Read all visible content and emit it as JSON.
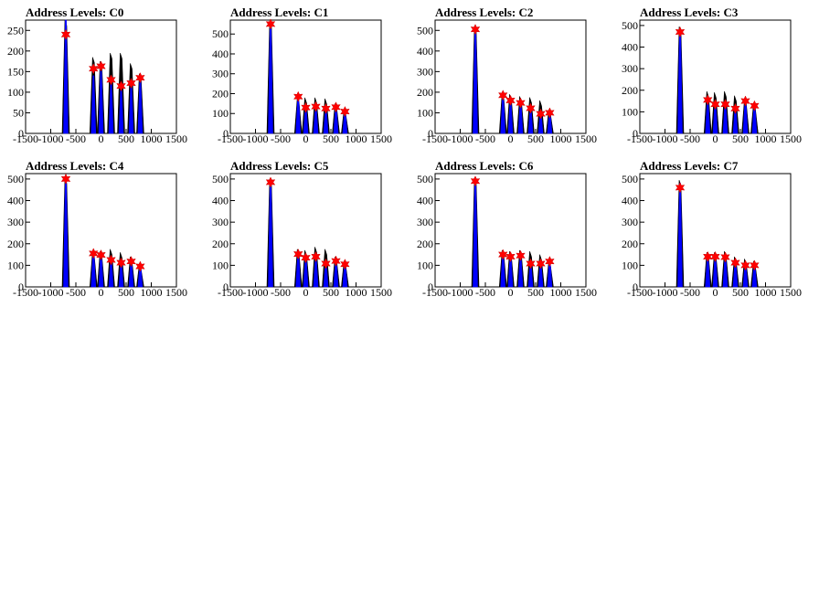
{
  "chart_data": [
    {
      "type": "histogram",
      "title": "Address Levels: C0",
      "xlim": [
        -1500,
        1500
      ],
      "ylim": [
        0,
        275
      ],
      "xticks": [
        -1500,
        -1000,
        -500,
        0,
        500,
        1000,
        1500
      ],
      "yticks": [
        0,
        50,
        100,
        150,
        200,
        250
      ],
      "colors": {
        "histogram": "#000000",
        "fit": "#0000ff",
        "marker": "#ff0000"
      },
      "histogram": [
        {
          "x": -700,
          "y": 275
        },
        {
          "x": -150,
          "y": 185
        },
        {
          "x": 0,
          "y": 175
        },
        {
          "x": 200,
          "y": 195
        },
        {
          "x": 400,
          "y": 195
        },
        {
          "x": 600,
          "y": 170
        },
        {
          "x": 780,
          "y": 145
        }
      ],
      "fit": [
        {
          "x": -700,
          "y": 275
        },
        {
          "x": -150,
          "y": 140
        },
        {
          "x": 0,
          "y": 155
        },
        {
          "x": 200,
          "y": 125
        },
        {
          "x": 400,
          "y": 110
        },
        {
          "x": 600,
          "y": 120
        },
        {
          "x": 780,
          "y": 130
        }
      ],
      "peaks": [
        {
          "x": -700,
          "y": 240
        },
        {
          "x": -150,
          "y": 157
        },
        {
          "x": 0,
          "y": 163
        },
        {
          "x": 200,
          "y": 130
        },
        {
          "x": 400,
          "y": 115
        },
        {
          "x": 600,
          "y": 122
        },
        {
          "x": 780,
          "y": 135
        }
      ]
    },
    {
      "type": "histogram",
      "title": "Address Levels: C1",
      "xlim": [
        -1500,
        1500
      ],
      "ylim": [
        0,
        570
      ],
      "xticks": [
        -1500,
        -1000,
        -500,
        0,
        500,
        1000,
        1500
      ],
      "yticks": [
        0,
        100,
        200,
        300,
        400,
        500
      ],
      "colors": {
        "histogram": "#000000",
        "fit": "#0000ff",
        "marker": "#ff0000"
      },
      "histogram": [
        {
          "x": -700,
          "y": 565
        },
        {
          "x": -150,
          "y": 180
        },
        {
          "x": 0,
          "y": 180
        },
        {
          "x": 200,
          "y": 180
        },
        {
          "x": 400,
          "y": 175
        },
        {
          "x": 600,
          "y": 150
        },
        {
          "x": 780,
          "y": 120
        }
      ],
      "fit": [
        {
          "x": -700,
          "y": 555
        },
        {
          "x": -150,
          "y": 180
        },
        {
          "x": 0,
          "y": 130
        },
        {
          "x": 200,
          "y": 135
        },
        {
          "x": 400,
          "y": 125
        },
        {
          "x": 600,
          "y": 130
        },
        {
          "x": 780,
          "y": 110
        }
      ],
      "peaks": [
        {
          "x": -700,
          "y": 550
        },
        {
          "x": -150,
          "y": 185
        },
        {
          "x": 0,
          "y": 130
        },
        {
          "x": 200,
          "y": 135
        },
        {
          "x": 400,
          "y": 125
        },
        {
          "x": 600,
          "y": 132
        },
        {
          "x": 780,
          "y": 110
        }
      ]
    },
    {
      "type": "histogram",
      "title": "Address Levels: C2",
      "xlim": [
        -1500,
        1500
      ],
      "ylim": [
        0,
        550
      ],
      "xticks": [
        -1500,
        -1000,
        -500,
        0,
        500,
        1000,
        1500
      ],
      "yticks": [
        0,
        100,
        200,
        300,
        400,
        500
      ],
      "colors": {
        "histogram": "#000000",
        "fit": "#0000ff",
        "marker": "#ff0000"
      },
      "histogram": [
        {
          "x": -700,
          "y": 520
        },
        {
          "x": -150,
          "y": 195
        },
        {
          "x": 0,
          "y": 190
        },
        {
          "x": 200,
          "y": 180
        },
        {
          "x": 400,
          "y": 175
        },
        {
          "x": 600,
          "y": 160
        },
        {
          "x": 780,
          "y": 115
        }
      ],
      "fit": [
        {
          "x": -700,
          "y": 510
        },
        {
          "x": -150,
          "y": 180
        },
        {
          "x": 0,
          "y": 160
        },
        {
          "x": 200,
          "y": 150
        },
        {
          "x": 400,
          "y": 125
        },
        {
          "x": 600,
          "y": 100
        },
        {
          "x": 780,
          "y": 100
        }
      ],
      "peaks": [
        {
          "x": -700,
          "y": 505
        },
        {
          "x": -150,
          "y": 185
        },
        {
          "x": 0,
          "y": 160
        },
        {
          "x": 200,
          "y": 148
        },
        {
          "x": 400,
          "y": 122
        },
        {
          "x": 600,
          "y": 95
        },
        {
          "x": 780,
          "y": 100
        }
      ]
    },
    {
      "type": "histogram",
      "title": "Address Levels: C3",
      "xlim": [
        -1500,
        1500
      ],
      "ylim": [
        0,
        525
      ],
      "xticks": [
        -1500,
        -1000,
        -500,
        0,
        500,
        1000,
        1500
      ],
      "yticks": [
        0,
        100,
        200,
        300,
        400,
        500
      ],
      "colors": {
        "histogram": "#000000",
        "fit": "#0000ff",
        "marker": "#ff0000"
      },
      "histogram": [
        {
          "x": -700,
          "y": 495
        },
        {
          "x": -150,
          "y": 195
        },
        {
          "x": 0,
          "y": 190
        },
        {
          "x": 200,
          "y": 195
        },
        {
          "x": 400,
          "y": 175
        },
        {
          "x": 600,
          "y": 160
        },
        {
          "x": 780,
          "y": 140
        }
      ],
      "fit": [
        {
          "x": -700,
          "y": 480
        },
        {
          "x": -150,
          "y": 155
        },
        {
          "x": 0,
          "y": 140
        },
        {
          "x": 200,
          "y": 140
        },
        {
          "x": 400,
          "y": 120
        },
        {
          "x": 600,
          "y": 150
        },
        {
          "x": 780,
          "y": 130
        }
      ],
      "peaks": [
        {
          "x": -700,
          "y": 470
        },
        {
          "x": -150,
          "y": 155
        },
        {
          "x": 0,
          "y": 135
        },
        {
          "x": 200,
          "y": 135
        },
        {
          "x": 400,
          "y": 115
        },
        {
          "x": 600,
          "y": 150
        },
        {
          "x": 780,
          "y": 128
        }
      ]
    },
    {
      "type": "histogram",
      "title": "Address Levels: C4",
      "xlim": [
        -1500,
        1500
      ],
      "ylim": [
        0,
        525
      ],
      "xticks": [
        -1500,
        -1000,
        -500,
        0,
        500,
        1000,
        1500
      ],
      "yticks": [
        0,
        100,
        200,
        300,
        400,
        500
      ],
      "colors": {
        "histogram": "#000000",
        "fit": "#0000ff",
        "marker": "#ff0000"
      },
      "histogram": [
        {
          "x": -700,
          "y": 505
        },
        {
          "x": -150,
          "y": 165
        },
        {
          "x": 0,
          "y": 165
        },
        {
          "x": 200,
          "y": 175
        },
        {
          "x": 400,
          "y": 160
        },
        {
          "x": 600,
          "y": 140
        },
        {
          "x": 780,
          "y": 105
        }
      ],
      "fit": [
        {
          "x": -700,
          "y": 500
        },
        {
          "x": -150,
          "y": 160
        },
        {
          "x": 0,
          "y": 150
        },
        {
          "x": 200,
          "y": 125
        },
        {
          "x": 400,
          "y": 115
        },
        {
          "x": 600,
          "y": 120
        },
        {
          "x": 780,
          "y": 100
        }
      ],
      "peaks": [
        {
          "x": -700,
          "y": 500
        },
        {
          "x": -150,
          "y": 155
        },
        {
          "x": 0,
          "y": 148
        },
        {
          "x": 200,
          "y": 125
        },
        {
          "x": 400,
          "y": 112
        },
        {
          "x": 600,
          "y": 118
        },
        {
          "x": 780,
          "y": 95
        }
      ]
    },
    {
      "type": "histogram",
      "title": "Address Levels: C5",
      "xlim": [
        -1500,
        1500
      ],
      "ylim": [
        0,
        525
      ],
      "xticks": [
        -1500,
        -1000,
        -500,
        0,
        500,
        1000,
        1500
      ],
      "yticks": [
        0,
        100,
        200,
        300,
        400,
        500
      ],
      "colors": {
        "histogram": "#000000",
        "fit": "#0000ff",
        "marker": "#ff0000"
      },
      "histogram": [
        {
          "x": -700,
          "y": 500
        },
        {
          "x": -150,
          "y": 175
        },
        {
          "x": 0,
          "y": 170
        },
        {
          "x": 200,
          "y": 185
        },
        {
          "x": 400,
          "y": 175
        },
        {
          "x": 600,
          "y": 140
        },
        {
          "x": 780,
          "y": 120
        }
      ],
      "fit": [
        {
          "x": -700,
          "y": 490
        },
        {
          "x": -150,
          "y": 155
        },
        {
          "x": 0,
          "y": 140
        },
        {
          "x": 200,
          "y": 140
        },
        {
          "x": 400,
          "y": 110
        },
        {
          "x": 600,
          "y": 120
        },
        {
          "x": 780,
          "y": 110
        }
      ],
      "peaks": [
        {
          "x": -700,
          "y": 485
        },
        {
          "x": -150,
          "y": 152
        },
        {
          "x": 0,
          "y": 135
        },
        {
          "x": 200,
          "y": 140
        },
        {
          "x": 400,
          "y": 108
        },
        {
          "x": 600,
          "y": 120
        },
        {
          "x": 780,
          "y": 105
        }
      ]
    },
    {
      "type": "histogram",
      "title": "Address Levels: C6",
      "xlim": [
        -1500,
        1500
      ],
      "ylim": [
        0,
        525
      ],
      "xticks": [
        -1500,
        -1000,
        -500,
        0,
        500,
        1000,
        1500
      ],
      "yticks": [
        0,
        100,
        200,
        300,
        400,
        500
      ],
      "colors": {
        "histogram": "#000000",
        "fit": "#0000ff",
        "marker": "#ff0000"
      },
      "histogram": [
        {
          "x": -700,
          "y": 505
        },
        {
          "x": -150,
          "y": 170
        },
        {
          "x": 0,
          "y": 165
        },
        {
          "x": 200,
          "y": 170
        },
        {
          "x": 400,
          "y": 165
        },
        {
          "x": 600,
          "y": 150
        },
        {
          "x": 780,
          "y": 120
        }
      ],
      "fit": [
        {
          "x": -700,
          "y": 500
        },
        {
          "x": -150,
          "y": 155
        },
        {
          "x": 0,
          "y": 145
        },
        {
          "x": 200,
          "y": 140
        },
        {
          "x": 400,
          "y": 110
        },
        {
          "x": 600,
          "y": 110
        },
        {
          "x": 780,
          "y": 120
        }
      ],
      "peaks": [
        {
          "x": -700,
          "y": 490
        },
        {
          "x": -150,
          "y": 150
        },
        {
          "x": 0,
          "y": 140
        },
        {
          "x": 200,
          "y": 145
        },
        {
          "x": 400,
          "y": 108
        },
        {
          "x": 600,
          "y": 108
        },
        {
          "x": 780,
          "y": 118
        }
      ]
    },
    {
      "type": "histogram",
      "title": "Address Levels: C7",
      "xlim": [
        -1500,
        1500
      ],
      "ylim": [
        0,
        525
      ],
      "xticks": [
        -1500,
        -1000,
        -500,
        0,
        500,
        1000,
        1500
      ],
      "yticks": [
        0,
        100,
        200,
        300,
        400,
        500
      ],
      "colors": {
        "histogram": "#000000",
        "fit": "#0000ff",
        "marker": "#ff0000"
      },
      "histogram": [
        {
          "x": -700,
          "y": 495
        },
        {
          "x": -150,
          "y": 160
        },
        {
          "x": 0,
          "y": 160
        },
        {
          "x": 200,
          "y": 165
        },
        {
          "x": 400,
          "y": 140
        },
        {
          "x": 600,
          "y": 130
        },
        {
          "x": 780,
          "y": 120
        }
      ],
      "fit": [
        {
          "x": -700,
          "y": 480
        },
        {
          "x": -150,
          "y": 145
        },
        {
          "x": 0,
          "y": 140
        },
        {
          "x": 200,
          "y": 140
        },
        {
          "x": 400,
          "y": 115
        },
        {
          "x": 600,
          "y": 110
        },
        {
          "x": 780,
          "y": 105
        }
      ],
      "peaks": [
        {
          "x": -700,
          "y": 460
        },
        {
          "x": -150,
          "y": 140
        },
        {
          "x": 0,
          "y": 140
        },
        {
          "x": 200,
          "y": 138
        },
        {
          "x": 400,
          "y": 112
        },
        {
          "x": 600,
          "y": 100
        },
        {
          "x": 780,
          "y": 100
        }
      ]
    }
  ]
}
